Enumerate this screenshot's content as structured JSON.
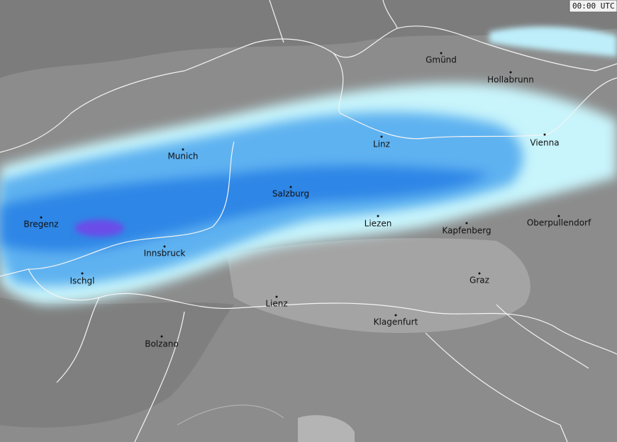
{
  "timestamp": "00:00 UTC",
  "cities": [
    "Gmünd",
    "Hollabrunn",
    "Linz",
    "Vienna",
    "Munich",
    "Salzburg",
    "Bregenz",
    "Liezen",
    "Kapfenberg",
    "Oberpullendorf",
    "Innsbruck",
    "Ischgl",
    "Graz",
    "Lienz",
    "Klagenfurt",
    "Bolzano"
  ]
}
